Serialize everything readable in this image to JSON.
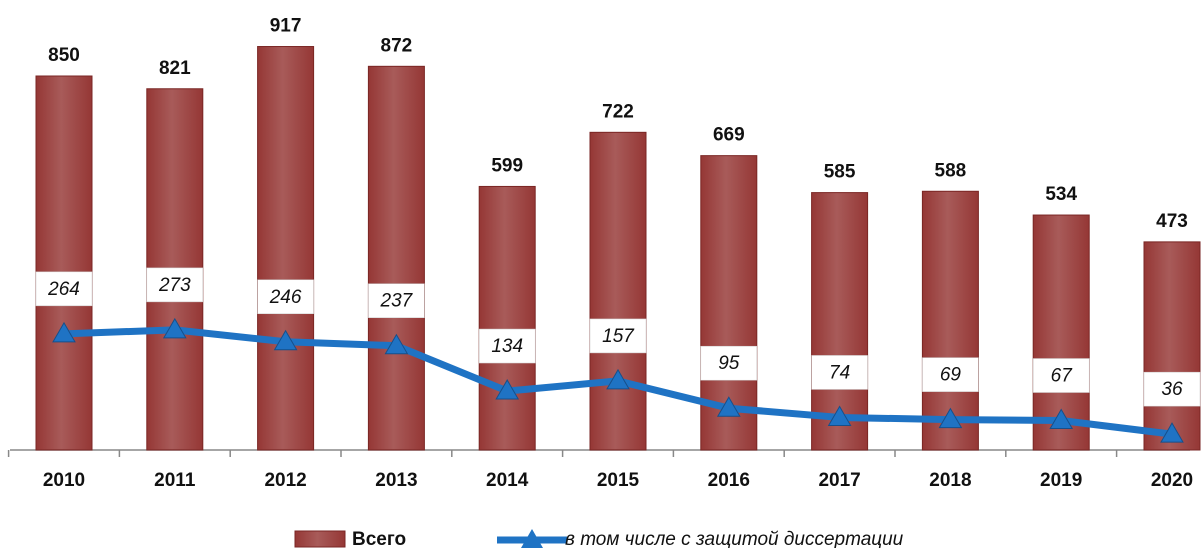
{
  "chart_data": {
    "type": "bar",
    "categories": [
      "2010",
      "2011",
      "2012",
      "2013",
      "2014",
      "2015",
      "2016",
      "2017",
      "2018",
      "2019",
      "2020"
    ],
    "series": [
      {
        "name": "Всего",
        "type": "bar",
        "color": "#953735",
        "values": [
          850,
          821,
          917,
          872,
          599,
          722,
          669,
          585,
          588,
          534,
          473
        ]
      },
      {
        "name": "в том числе с защитой диссертации",
        "type": "line",
        "color": "#1f73c4",
        "values": [
          264,
          273,
          246,
          237,
          134,
          157,
          95,
          74,
          69,
          67,
          36
        ]
      }
    ],
    "ylim": [
      0,
      1000
    ]
  }
}
